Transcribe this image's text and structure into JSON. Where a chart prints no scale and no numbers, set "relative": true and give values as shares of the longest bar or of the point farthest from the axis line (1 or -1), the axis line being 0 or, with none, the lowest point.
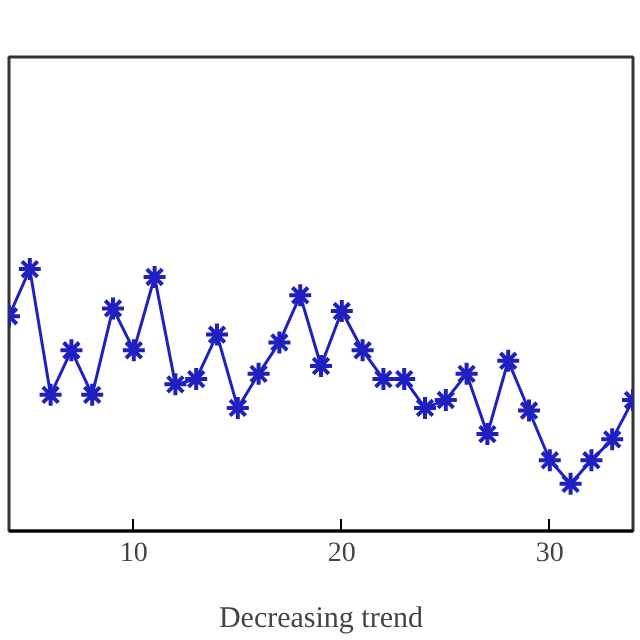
{
  "chart_data": {
    "type": "line",
    "xlabel": "Decreasing trend",
    "relative": true,
    "x": [
      4,
      5,
      6,
      7,
      8,
      9,
      10,
      11,
      12,
      13,
      14,
      15,
      16,
      17,
      18,
      19,
      20,
      21,
      22,
      23,
      24,
      25,
      26,
      27,
      28,
      29,
      30,
      31,
      32,
      33,
      34
    ],
    "series": [
      {
        "color": "#2020c0",
        "values": [
          0.82,
          1.0,
          0.52,
          0.69,
          0.52,
          0.85,
          0.69,
          0.97,
          0.56,
          0.58,
          0.75,
          0.47,
          0.6,
          0.72,
          0.9,
          0.63,
          0.84,
          0.69,
          0.58,
          0.58,
          0.47,
          0.5,
          0.6,
          0.37,
          0.65,
          0.46,
          0.27,
          0.18,
          0.27,
          0.35,
          0.5
        ]
      }
    ],
    "xlim": [
      4,
      34
    ],
    "xticks": [
      10,
      20,
      30
    ],
    "marker": "cross",
    "line_style": "solid"
  }
}
